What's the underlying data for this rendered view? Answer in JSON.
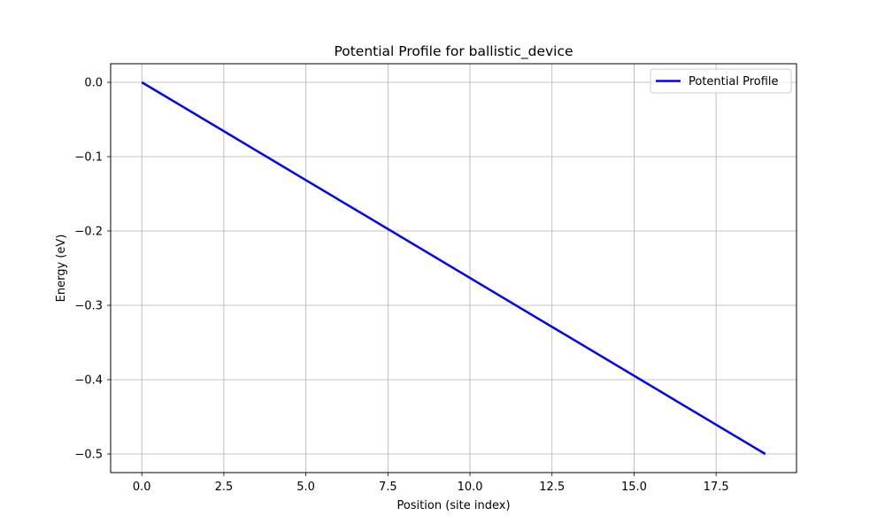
{
  "chart_data": {
    "type": "line",
    "title": "Potential Profile for ballistic_device",
    "xlabel": "Position (site index)",
    "ylabel": "Energy (eV)",
    "xlim": [
      -0.95,
      19.95
    ],
    "ylim": [
      -0.525,
      0.025
    ],
    "x_ticks": [
      0.0,
      2.5,
      5.0,
      7.5,
      10.0,
      12.5,
      15.0,
      17.5
    ],
    "x_tick_labels": [
      "0.0",
      "2.5",
      "5.0",
      "7.5",
      "10.0",
      "12.5",
      "15.0",
      "17.5"
    ],
    "y_ticks": [
      0.0,
      -0.1,
      -0.2,
      -0.3,
      -0.4,
      -0.5
    ],
    "y_tick_labels": [
      "0.0",
      "−0.1",
      "−0.2",
      "−0.3",
      "−0.4",
      "−0.5"
    ],
    "grid": true,
    "legend_position": "top-right",
    "series": [
      {
        "name": "Potential Profile",
        "color": "#0000ff",
        "x": [
          0,
          1,
          2,
          3,
          4,
          5,
          6,
          7,
          8,
          9,
          10,
          11,
          12,
          13,
          14,
          15,
          16,
          17,
          18,
          19
        ],
        "y": [
          0.0,
          -0.0263,
          -0.0526,
          -0.0789,
          -0.1053,
          -0.1316,
          -0.1579,
          -0.1842,
          -0.2105,
          -0.2368,
          -0.2632,
          -0.2895,
          -0.3158,
          -0.3421,
          -0.3684,
          -0.3947,
          -0.4211,
          -0.4474,
          -0.4737,
          -0.5
        ]
      }
    ]
  }
}
